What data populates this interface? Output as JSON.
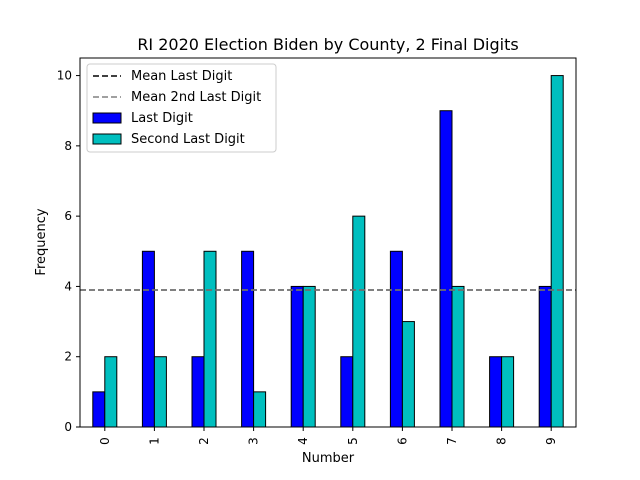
{
  "chart_data": {
    "type": "bar",
    "title": "RI 2020 Election Biden by County, 2 Final Digits",
    "xlabel": "Number",
    "ylabel": "Frequency",
    "categories": [
      "0",
      "1",
      "2",
      "3",
      "4",
      "5",
      "6",
      "7",
      "8",
      "9"
    ],
    "series": [
      {
        "name": "Last Digit",
        "color": "#0000ff",
        "values": [
          1,
          5,
          2,
          5,
          4,
          2,
          5,
          9,
          2,
          4
        ]
      },
      {
        "name": "Second Last Digit",
        "color": "#00bfbf",
        "values": [
          2,
          2,
          5,
          1,
          4,
          6,
          3,
          4,
          2,
          10
        ]
      }
    ],
    "reference_lines": [
      {
        "name": "Mean Last Digit",
        "value": 3.9,
        "color": "#000000",
        "style": "dashed"
      },
      {
        "name": "Mean 2nd Last Digit",
        "value": 3.9,
        "color": "#808080",
        "style": "dashed"
      }
    ],
    "ylim": [
      0,
      10.5
    ],
    "yticks": [
      0,
      2,
      4,
      6,
      8,
      10
    ],
    "grid": false,
    "legend_position": "top-left"
  }
}
